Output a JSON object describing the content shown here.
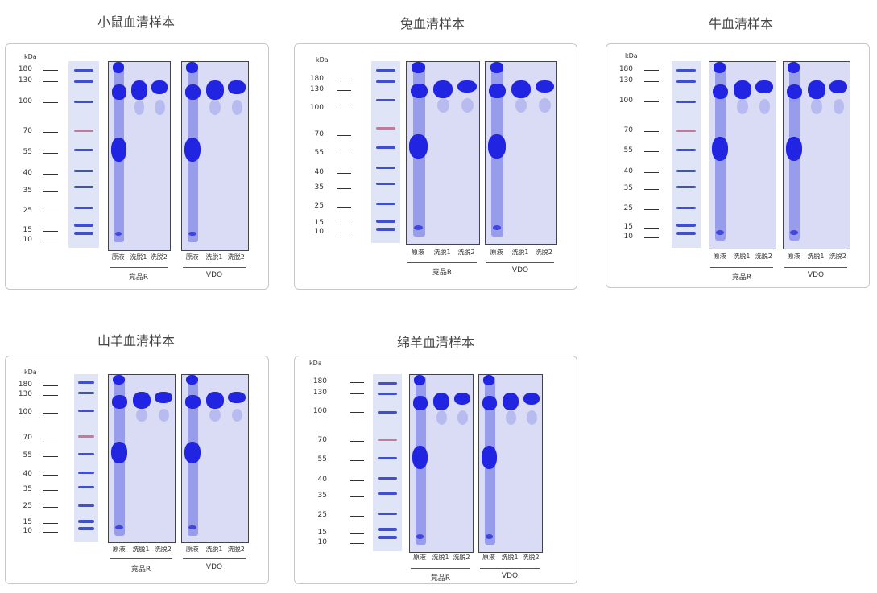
{
  "kda_unit": "kDa",
  "marker_weights": [
    "180",
    "130",
    "100",
    "70",
    "55",
    "40",
    "35",
    "25",
    "15",
    "10"
  ],
  "lane_labels": [
    "原液",
    "洗脱1",
    "洗脱2"
  ],
  "groups": [
    "竞品R",
    "VDO"
  ],
  "panels": [
    {
      "title": "小鼠血清样本"
    },
    {
      "title": "兔血清样本"
    },
    {
      "title": "牛血清样本"
    },
    {
      "title": "山羊血清样本"
    },
    {
      "title": "绵羊血清样本"
    }
  ]
}
